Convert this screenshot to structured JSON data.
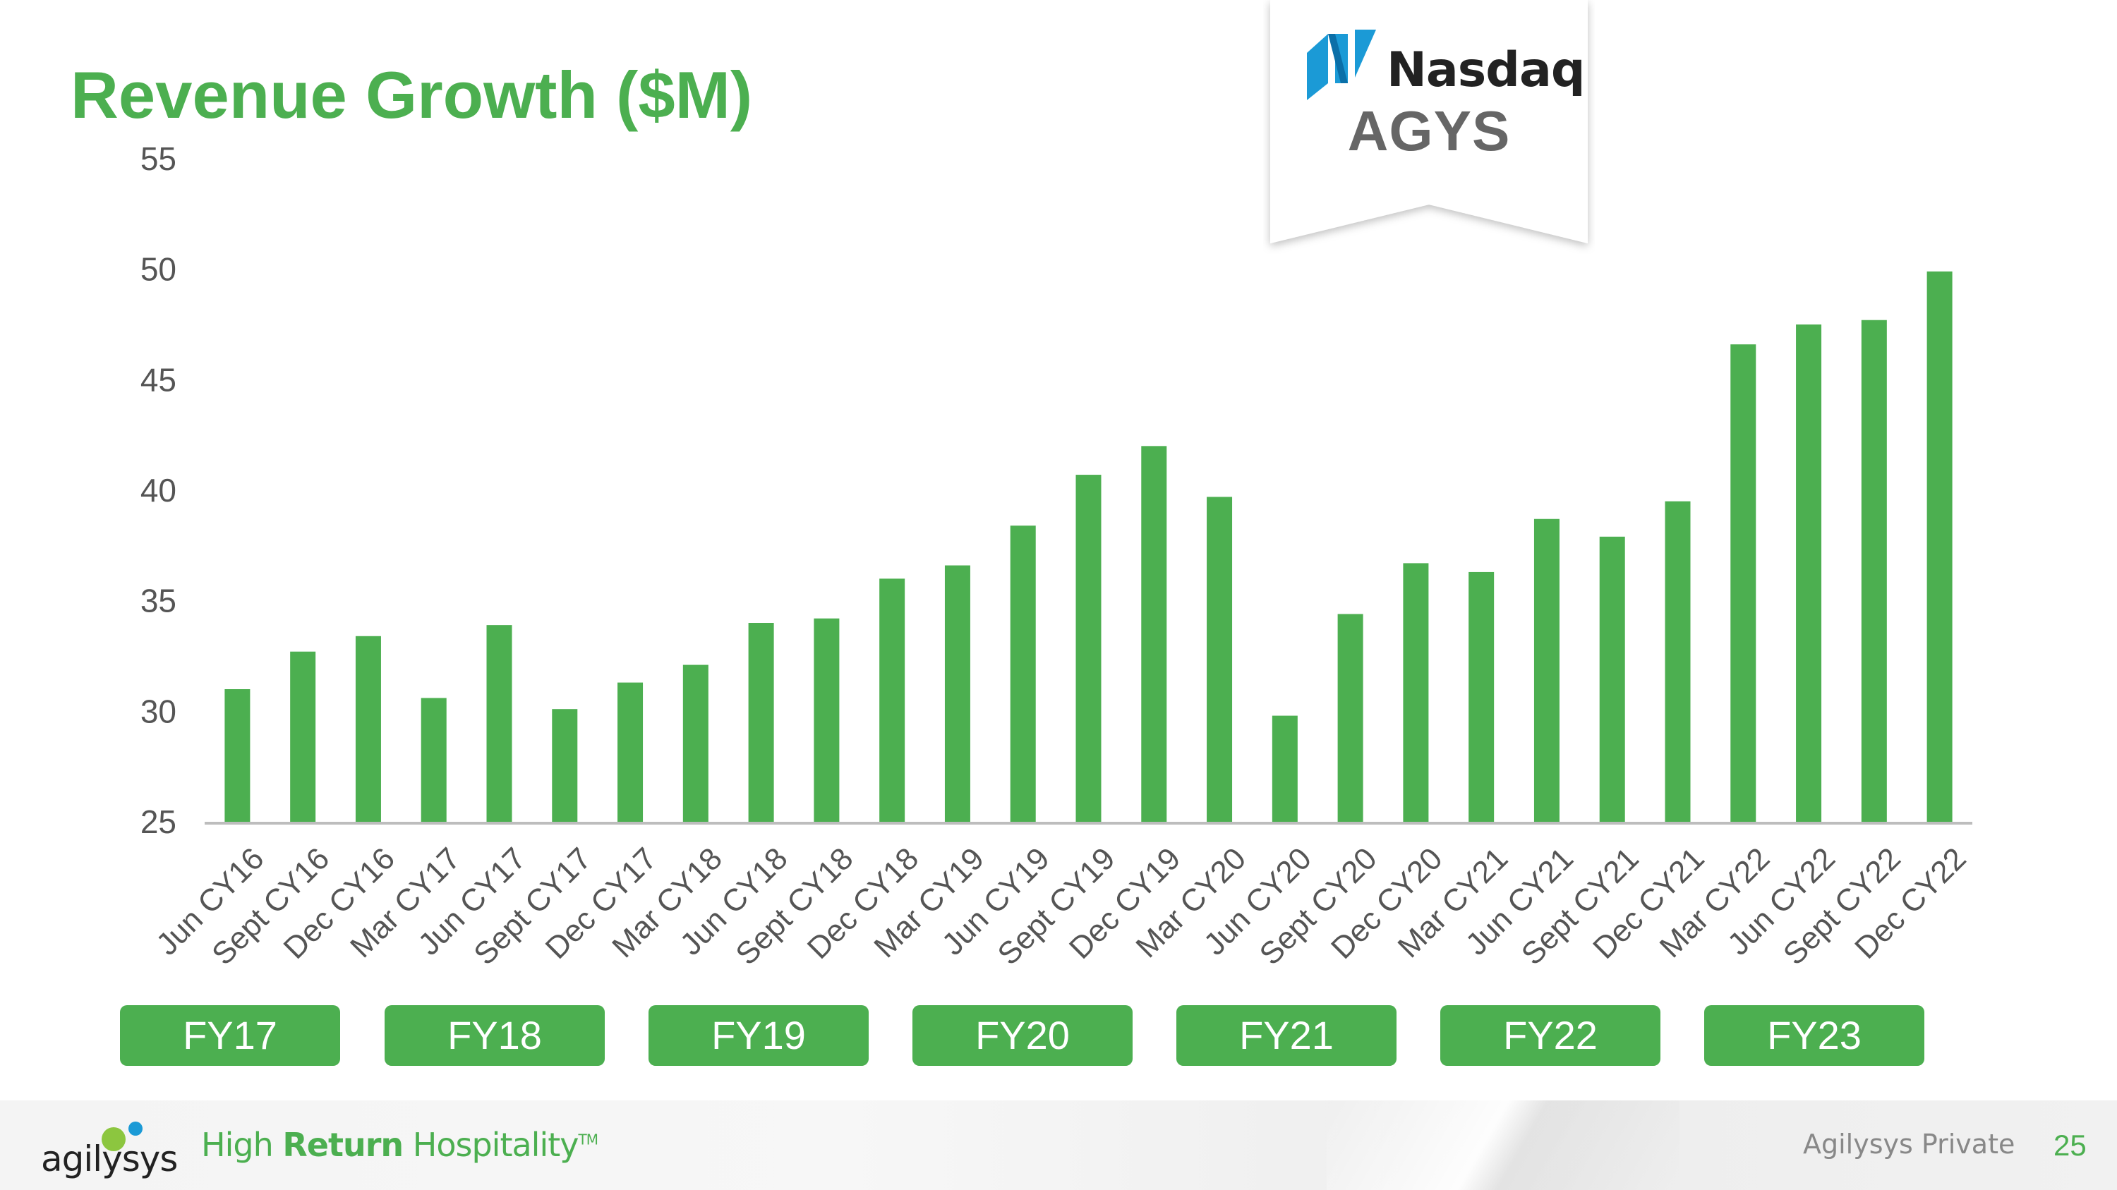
{
  "slide": {
    "title": "Revenue Growth ($M)",
    "page_number": "25",
    "footer_label": "Agilysys Private"
  },
  "badge": {
    "brand": "Nasdaq",
    "ticker": "AGYS",
    "brand_color": "#1b9ad6"
  },
  "logo": {
    "name": "agilysys",
    "tagline_pre": "High ",
    "tagline_bold": "Return",
    "tagline_post": " Hospitality",
    "tagline_tm": "TM"
  },
  "colors": {
    "accent": "#4caf50",
    "axis": "#bdbdbd",
    "tick_text": "#555555"
  },
  "fiscal_years": [
    "FY17",
    "FY18",
    "FY19",
    "FY20",
    "FY21",
    "FY22",
    "FY23"
  ],
  "chart_data": {
    "type": "bar",
    "title": "Revenue Growth ($M)",
    "xlabel": "",
    "ylabel": "",
    "ylim": [
      25,
      55
    ],
    "yticks": [
      25,
      30,
      35,
      40,
      45,
      50,
      55
    ],
    "grid": false,
    "categories": [
      "Jun CY16",
      "Sept CY16",
      "Dec CY16",
      "Mar CY17",
      "Jun CY17",
      "Sept CY17",
      "Dec CY17",
      "Mar CY18",
      "Jun CY18",
      "Sept CY18",
      "Dec CY18",
      "Mar CY19",
      "Jun CY19",
      "Sept CY19",
      "Dec CY19",
      "Mar CY20",
      "Jun CY20",
      "Sept CY20",
      "Dec CY20",
      "Mar CY21",
      "Jun CY21",
      "Sept CY21",
      "Dec CY21",
      "Mar CY22",
      "Jun CY22",
      "Sept CY22",
      "Dec CY22"
    ],
    "values": [
      31.0,
      32.7,
      33.4,
      30.6,
      33.9,
      30.1,
      31.3,
      32.1,
      34.0,
      34.2,
      36.0,
      36.6,
      38.4,
      40.7,
      42.0,
      39.7,
      29.8,
      34.4,
      36.7,
      36.3,
      38.7,
      37.9,
      39.5,
      46.6,
      47.5,
      47.7,
      49.9
    ]
  }
}
